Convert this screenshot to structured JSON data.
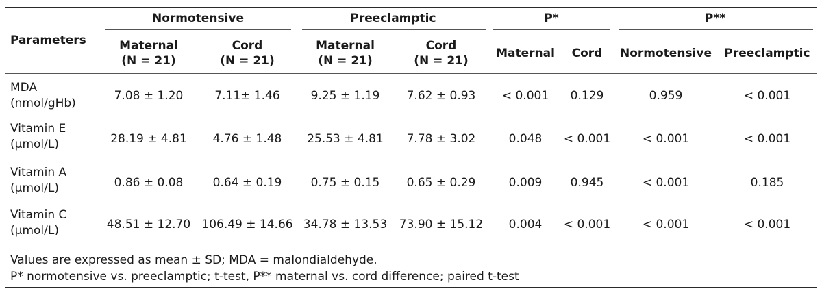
{
  "header": {
    "parameters": "Parameters",
    "groups": [
      "Normotensive",
      "Preeclamptic",
      "P*",
      "P**"
    ],
    "subcolumns": [
      {
        "name": "Maternal",
        "n": "(N = 21)"
      },
      {
        "name": "Cord",
        "n": "(N = 21)"
      },
      {
        "name": "Maternal",
        "n": "(N = 21)"
      },
      {
        "name": "Cord",
        "n": "(N = 21)"
      },
      {
        "name": "Maternal",
        "n": ""
      },
      {
        "name": "Cord",
        "n": ""
      },
      {
        "name": "Normotensive",
        "n": ""
      },
      {
        "name": "Preeclamptic",
        "n": ""
      }
    ]
  },
  "rows": [
    {
      "param": "MDA",
      "unit": "(nmol/gHb)",
      "values": [
        "7.08 ± 1.20",
        "7.11± 1.46",
        "9.25 ± 1.19",
        "7.62 ± 0.93",
        "< 0.001",
        "0.129",
        "0.959",
        "< 0.001"
      ]
    },
    {
      "param": "Vitamin E",
      "unit": "(μmol/L)",
      "values": [
        "28.19 ± 4.81",
        "4.76 ± 1.48",
        "25.53 ± 4.81",
        "7.78 ± 3.02",
        "0.048",
        "< 0.001",
        "< 0.001",
        "< 0.001"
      ]
    },
    {
      "param": "Vitamin A",
      "unit": "(μmol/L)",
      "values": [
        "0.86 ± 0.08",
        "0.64 ± 0.19",
        "0.75 ± 0.15",
        "0.65 ± 0.29",
        "0.009",
        "0.945",
        "< 0.001",
        "0.185"
      ]
    },
    {
      "param": "Vitamin C",
      "unit": "(μmol/L)",
      "values": [
        "48.51 ± 12.70",
        "106.49 ± 14.66",
        "34.78 ± 13.53",
        "73.90 ± 15.12",
        "0.004",
        "< 0.001",
        "< 0.001",
        "< 0.001"
      ]
    }
  ],
  "footnotes": [
    "Values are expressed as mean ± SD; MDA = malondialdehyde.",
    "P* normotensive vs. preeclamptic; t-test, P** maternal vs. cord difference; paired t-test"
  ]
}
